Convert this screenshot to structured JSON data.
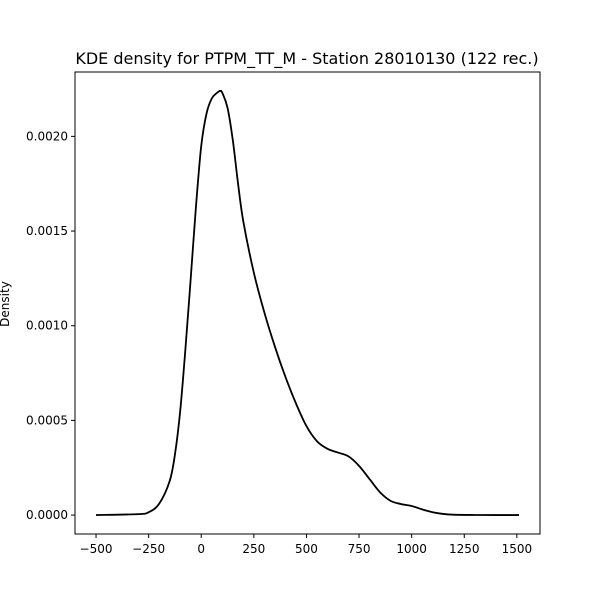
{
  "chart_data": {
    "type": "line",
    "title": "KDE density for PTPM_TT_M - Station 28010130 (122 rec.)",
    "xlabel": "",
    "ylabel": "Density",
    "xlim": [
      -600,
      1610
    ],
    "ylim": [
      -0.0001,
      0.00234
    ],
    "x_ticks": [
      -500,
      -250,
      0,
      250,
      500,
      750,
      1000,
      1250,
      1500
    ],
    "x_tick_labels": [
      "−500",
      "−250",
      "0",
      "250",
      "500",
      "750",
      "1000",
      "1250",
      "1500"
    ],
    "y_ticks": [
      0,
      0.0005,
      0.001,
      0.0015,
      0.002
    ],
    "y_tick_labels": [
      "0.0000",
      "0.0005",
      "0.0010",
      "0.0015",
      "0.0020"
    ],
    "grid": false,
    "legend": false,
    "series": [
      {
        "color": "#000000",
        "x": [
          -500,
          -300,
          -250,
          -200,
          -150,
          -125,
          -100,
          -75,
          -50,
          -25,
          0,
          25,
          50,
          75,
          90,
          100,
          125,
          150,
          175,
          200,
          250,
          300,
          350,
          400,
          450,
          500,
          550,
          600,
          650,
          700,
          750,
          800,
          850,
          900,
          950,
          1000,
          1050,
          1100,
          1150,
          1200,
          1300,
          1400,
          1510
        ],
        "y": [
          0,
          5e-06,
          1.5e-05,
          6e-05,
          0.00018,
          0.00032,
          0.00055,
          0.00088,
          0.00125,
          0.00163,
          0.00195,
          0.00212,
          0.0022,
          0.00223,
          0.00224,
          0.00223,
          0.00215,
          0.00198,
          0.00175,
          0.00155,
          0.00128,
          0.00107,
          0.00089,
          0.00073,
          0.00059,
          0.00047,
          0.00039,
          0.00035,
          0.00033,
          0.00031,
          0.00026,
          0.00019,
          0.00012,
          7.5e-05,
          5.8e-05,
          4.8e-05,
          3e-05,
          1.5e-05,
          6e-06,
          2e-06,
          5e-07,
          0,
          0
        ]
      }
    ]
  }
}
